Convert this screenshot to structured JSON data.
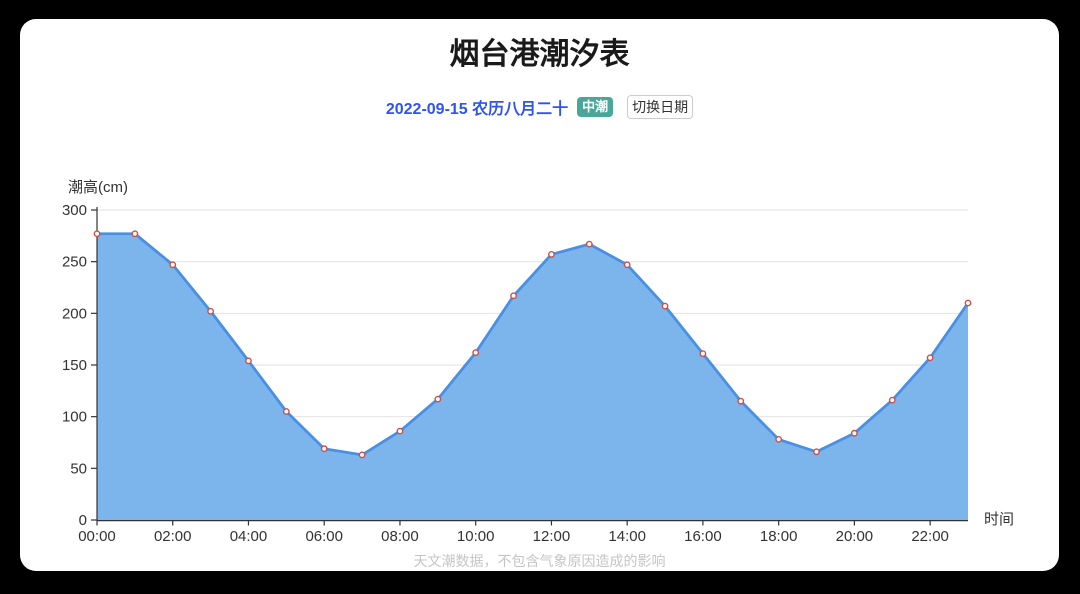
{
  "page": {
    "background": "#000000",
    "card_background": "#ffffff"
  },
  "header": {
    "title": "烟台港潮汐表"
  },
  "subheader": {
    "date_label": "2022-09-15 农历八月二十",
    "date_color": "#2f54eb",
    "tide_badge": {
      "label": "中潮",
      "background": "#49a79a",
      "text_color": "#ffffff"
    },
    "switch_date_button": "切换日期"
  },
  "chart_data": {
    "type": "area",
    "title": "烟台港潮汐表",
    "x": [
      "00:00",
      "01:00",
      "02:00",
      "03:00",
      "04:00",
      "05:00",
      "06:00",
      "07:00",
      "08:00",
      "09:00",
      "10:00",
      "11:00",
      "12:00",
      "13:00",
      "14:00",
      "15:00",
      "16:00",
      "17:00",
      "18:00",
      "19:00",
      "20:00",
      "21:00",
      "22:00",
      "23:00"
    ],
    "values": [
      277,
      277,
      247,
      202,
      154,
      105,
      69,
      63,
      86,
      117,
      162,
      217,
      257,
      267,
      247,
      207,
      161,
      115,
      78,
      66,
      84,
      116,
      157,
      210
    ],
    "ylabel": "潮高(cm)",
    "xlabel": "时间",
    "ylim": [
      0,
      300
    ],
    "ytick_step": 50,
    "xtick_label_every": 2,
    "grid": true,
    "legend": false,
    "colors": {
      "line": "#4a90e2",
      "area": "#7cb5ec",
      "marker_fill": "#ffffff",
      "marker_stroke": "#d14b41",
      "gridline": "#e2e2e2",
      "axis": "#333333",
      "tick_label": "#333333"
    }
  },
  "footer": {
    "disclaimer": "天文潮数据，不包含气象原因造成的影响"
  }
}
